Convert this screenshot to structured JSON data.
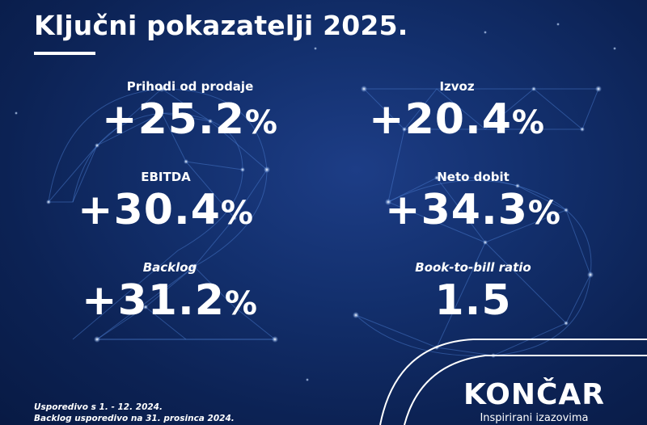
{
  "header": {
    "title": "Ključni pokazatelji 2025."
  },
  "metrics": [
    {
      "label": "Prihodi od prodaje",
      "number": "+25.2",
      "unit": "%"
    },
    {
      "label": "Izvoz",
      "number": "+20.4",
      "unit": "%"
    },
    {
      "label": "EBITDA",
      "number": "+30.4",
      "unit": "%"
    },
    {
      "label": "Neto dobit",
      "number": "+34.3",
      "unit": "%"
    },
    {
      "label": "Backlog",
      "number": "+31.2",
      "unit": "%"
    },
    {
      "label": "Book-to-bill ratio",
      "number": "1.5",
      "unit": ""
    }
  ],
  "footnotes": {
    "line1": "Usporedivo s 1. - 12. 2024.",
    "line2": "Backlog usporedivo na 31. prosinca 2024."
  },
  "brand": {
    "name": "KONČAR",
    "tagline": "Inspirirani izazovima"
  },
  "colors": {
    "background": "#0d2150",
    "text": "#ffffff",
    "network_lines": "#5a8fe0"
  }
}
